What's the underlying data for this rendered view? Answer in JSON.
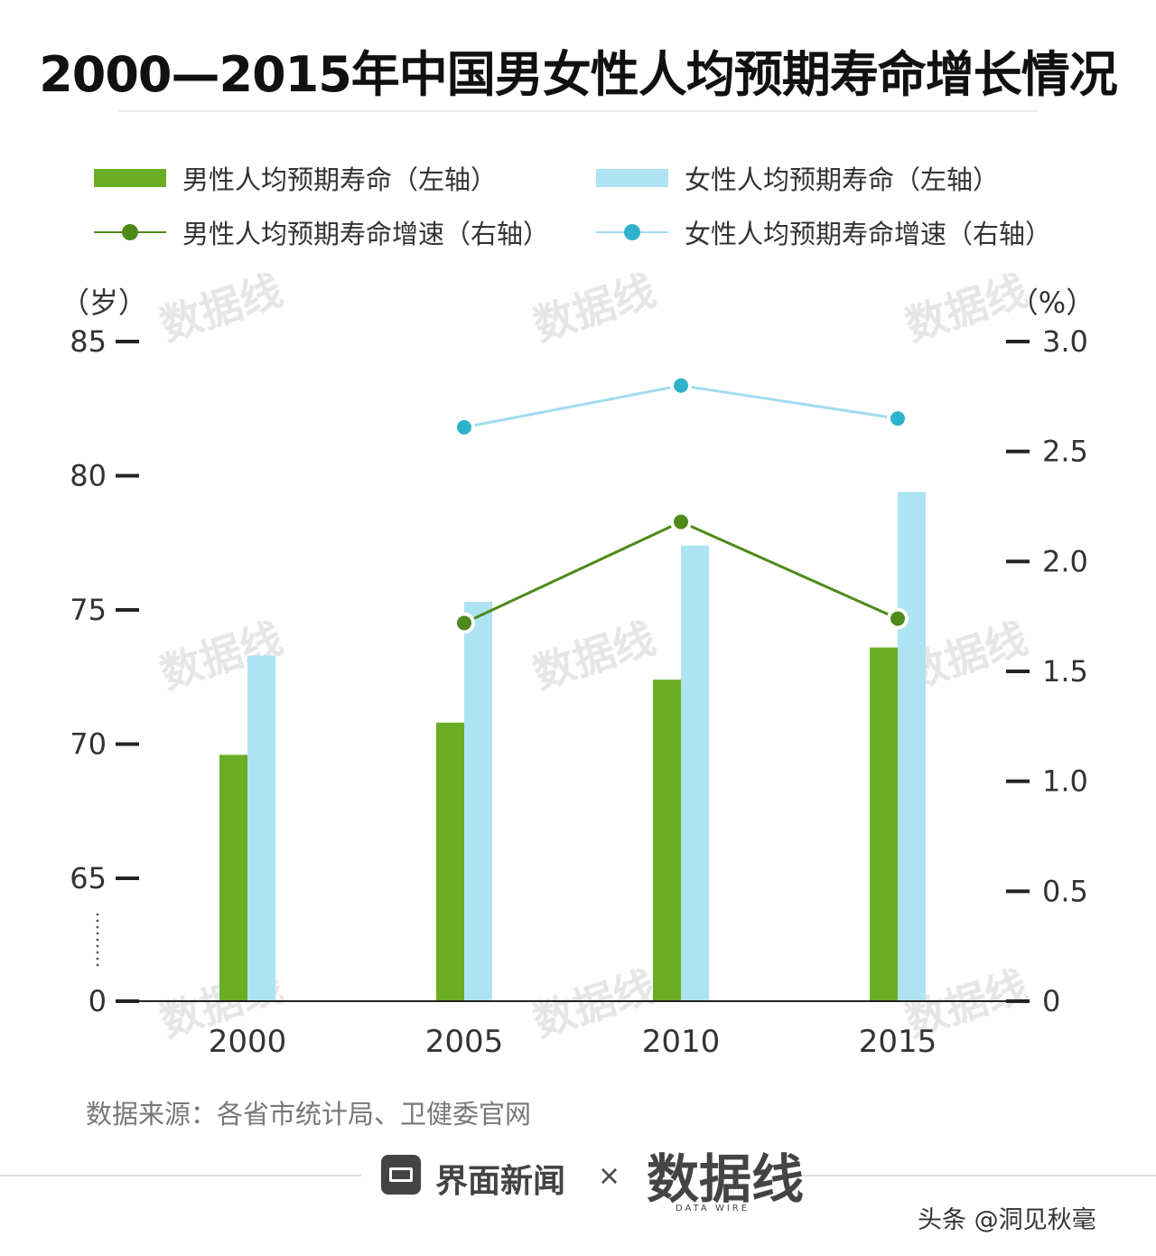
{
  "title": "2000—2015年中国男女性人均预期寿命增长情况",
  "legend": {
    "male_bar": "男性人均预期寿命（左轴）",
    "female_bar": "女性人均预期寿命（左轴）",
    "male_line": "男性人均预期寿命增速（右轴）",
    "female_line": "女性人均预期寿命增速（右轴）"
  },
  "colors": {
    "male_bar": "#6aae23",
    "female_bar": "#aee3f3",
    "male_line": "#4e8a1a",
    "female_line": "#9fdcee",
    "female_dot": "#2fb3cc"
  },
  "watermark_text": "数据线",
  "source": "数据来源：各省市统计局、卫健委官网",
  "footer": {
    "brand_name": "界面新闻",
    "times": "×",
    "partner_logo": "数据线",
    "partner_sub": "DATA WIRE",
    "credit": "头条 @洞见秋毫"
  },
  "chart_data": {
    "type": "bar",
    "categories": [
      "2000",
      "2005",
      "2010",
      "2015"
    ],
    "left_axis": {
      "unit": "（岁）",
      "ticks": [
        "0",
        "65",
        "70",
        "75",
        "80",
        "85"
      ],
      "tick_values": [
        0,
        65,
        70,
        75,
        80,
        85
      ],
      "axis_break": true
    },
    "right_axis": {
      "unit": "（%）",
      "ticks": [
        "0",
        "0.5",
        "1.0",
        "1.5",
        "2.0",
        "2.5",
        "3.0"
      ],
      "tick_values": [
        0,
        0.5,
        1.0,
        1.5,
        2.0,
        2.5,
        3.0
      ],
      "ylim": [
        0,
        3.0
      ]
    },
    "series": [
      {
        "name": "男性人均预期寿命（左轴）",
        "kind": "bar",
        "axis": "left",
        "values": [
          69.6,
          70.8,
          72.4,
          73.6
        ]
      },
      {
        "name": "女性人均预期寿命（左轴）",
        "kind": "bar",
        "axis": "left",
        "values": [
          73.3,
          75.3,
          77.4,
          79.4
        ]
      },
      {
        "name": "男性人均预期寿命增速（右轴）",
        "kind": "line",
        "axis": "right",
        "values": [
          null,
          1.72,
          2.18,
          1.74
        ]
      },
      {
        "name": "女性人均预期寿命增速（右轴）",
        "kind": "line",
        "axis": "right",
        "values": [
          null,
          2.61,
          2.8,
          2.65
        ]
      }
    ],
    "legend_position": "top",
    "grid": false
  }
}
